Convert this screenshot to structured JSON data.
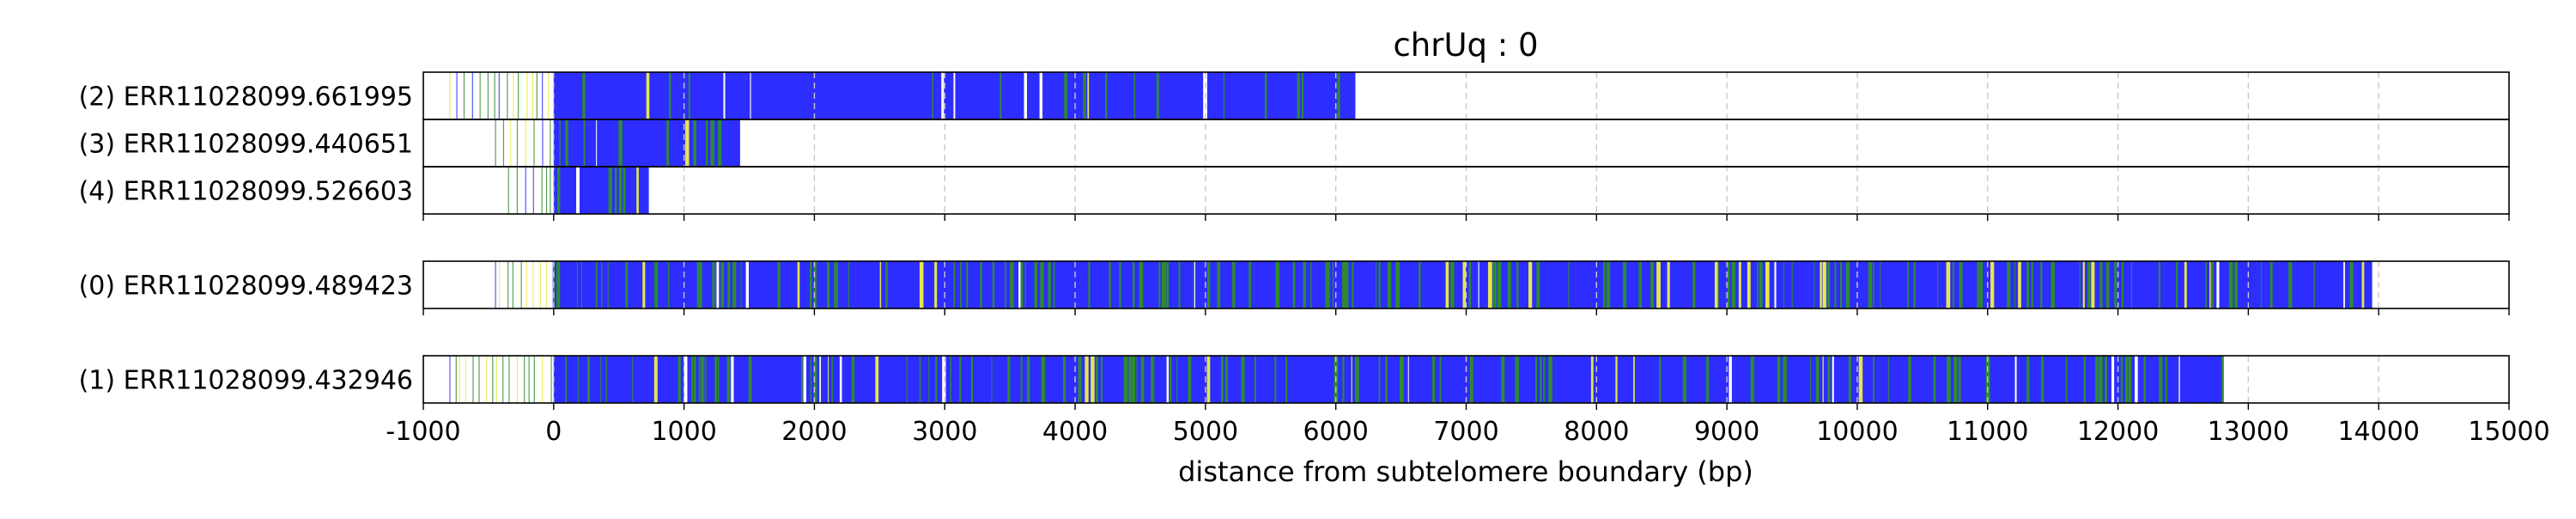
{
  "chart_data": {
    "type": "heatmap",
    "title": "chrUq : 0",
    "xlabel": "distance from subtelomere boundary (bp)",
    "ylabel": "",
    "xlim": [
      -1000,
      15000
    ],
    "x_ticks": [
      -1000,
      0,
      1000,
      2000,
      3000,
      4000,
      5000,
      6000,
      7000,
      8000,
      9000,
      10000,
      11000,
      12000,
      13000,
      14000,
      15000
    ],
    "grid": "vertical dashed",
    "colors": {
      "blue": "#2d2dff",
      "green": "#2e8b2e",
      "yellow": "#e6e64d",
      "white": "#ffffff",
      "frame": "#000000",
      "grid": "#c8c8c8"
    },
    "groups": [
      {
        "reads": [
          {
            "label": "(2) ERR11028099.661995",
            "start": -800,
            "dense_start": 0,
            "end": 6150,
            "greenness": 0.12
          },
          {
            "label": "(3) ERR11028099.440651",
            "start": -450,
            "dense_start": 0,
            "end": 1430,
            "greenness": 0.35
          },
          {
            "label": "(4) ERR11028099.526603",
            "start": -350,
            "dense_start": 0,
            "end": 730,
            "greenness": 0.45
          }
        ]
      },
      {
        "reads": [
          {
            "label": "(0) ERR11028099.489423",
            "start": -450,
            "dense_start": 0,
            "end": 13950,
            "greenness": 0.45
          }
        ]
      },
      {
        "reads": [
          {
            "label": "(1) ERR11028099.432946",
            "start": -800,
            "dense_start": 0,
            "end": 12800,
            "greenness": 0.45
          }
        ]
      }
    ]
  }
}
